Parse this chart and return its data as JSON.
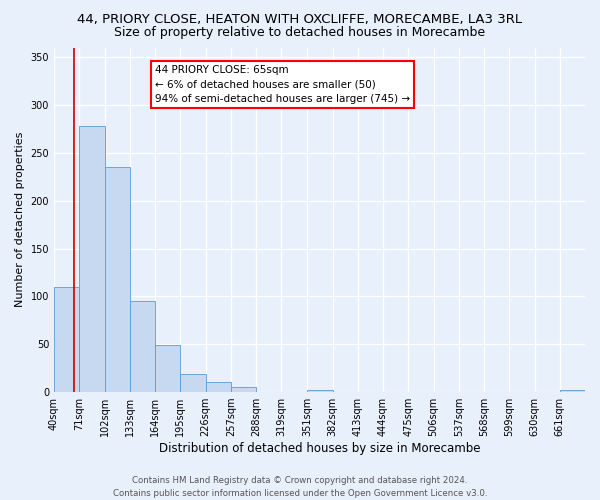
{
  "title_line1": "44, PRIORY CLOSE, HEATON WITH OXCLIFFE, MORECAMBE, LA3 3RL",
  "title_line2": "Size of property relative to detached houses in Morecambe",
  "xlabel": "Distribution of detached houses by size in Morecambe",
  "ylabel": "Number of detached properties",
  "bin_labels": [
    "40sqm",
    "71sqm",
    "102sqm",
    "133sqm",
    "164sqm",
    "195sqm",
    "226sqm",
    "257sqm",
    "288sqm",
    "319sqm",
    "351sqm",
    "382sqm",
    "413sqm",
    "444sqm",
    "475sqm",
    "506sqm",
    "537sqm",
    "568sqm",
    "599sqm",
    "630sqm",
    "661sqm"
  ],
  "bar_heights": [
    110,
    278,
    235,
    95,
    49,
    19,
    11,
    5,
    0,
    0,
    2,
    0,
    0,
    0,
    0,
    0,
    0,
    0,
    0,
    0,
    2
  ],
  "bar_color": "#c7d9f0",
  "bar_edge_color": "#5b9bd5",
  "ylim": [
    0,
    360
  ],
  "yticks": [
    0,
    50,
    100,
    150,
    200,
    250,
    300,
    350
  ],
  "property_line_x": 65,
  "bin_edges_values": [
    40,
    71,
    102,
    133,
    164,
    195,
    226,
    257,
    288,
    319,
    351,
    382,
    413,
    444,
    475,
    506,
    537,
    568,
    599,
    630,
    661,
    692
  ],
  "annotation_box_text": "44 PRIORY CLOSE: 65sqm\n← 6% of detached houses are smaller (50)\n94% of semi-detached houses are larger (745) →",
  "red_line_color": "#cc0000",
  "footer_line1": "Contains HM Land Registry data © Crown copyright and database right 2024.",
  "footer_line2": "Contains public sector information licensed under the Open Government Licence v3.0.",
  "background_color": "#e8f0fb",
  "plot_bg_color": "#e8f0fb",
  "grid_color": "#ffffff",
  "title_fontsize": 9.5,
  "subtitle_fontsize": 9,
  "annotation_fontsize": 7.5,
  "ylabel_fontsize": 8,
  "xlabel_fontsize": 8.5,
  "footer_fontsize": 6.2,
  "tick_fontsize": 7
}
